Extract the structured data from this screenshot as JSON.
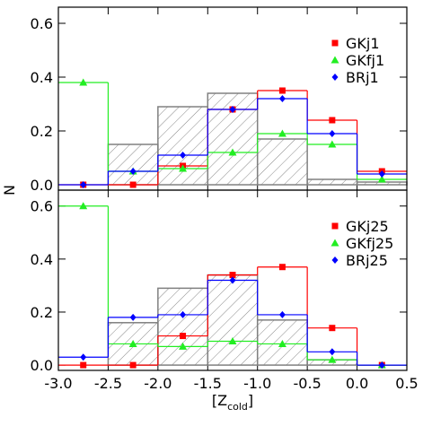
{
  "chart_data": [
    {
      "type": "histogram",
      "ylabel": "N",
      "bins": [
        -3.0,
        -2.5,
        -2.0,
        -1.5,
        -1.0,
        -0.5,
        0.0,
        0.5
      ],
      "xlim": [
        -3.0,
        0.5
      ],
      "ylim": [
        -0.02,
        0.66
      ],
      "yticks": [
        {
          "value": 0,
          "label": "0.0"
        },
        0.2,
        0.4,
        0.6
      ],
      "legend": "upper right",
      "series": [
        {
          "color": "#808080",
          "hatch": true,
          "values": [
            0,
            0.15,
            0.29,
            0.34,
            0.17,
            0.02,
            0.01
          ]
        },
        {
          "name": "GKj1",
          "color": "#ff0000",
          "marker": "square",
          "values": [
            0,
            0,
            0.07,
            0.28,
            0.35,
            0.24,
            0.05
          ]
        },
        {
          "name": "GKfj1",
          "color": "#22ee22",
          "marker": "triangle",
          "values": [
            0.38,
            0.05,
            0.06,
            0.12,
            0.19,
            0.15,
            0.02
          ]
        },
        {
          "name": "BRj1",
          "color": "#0000ff",
          "marker": "diamond",
          "values": [
            0,
            0.05,
            0.11,
            0.28,
            0.32,
            0.19,
            0.04
          ]
        }
      ]
    },
    {
      "type": "histogram",
      "xlabel": "[Z",
      "xlabel_sub": "cold",
      "xlabel_end": "]",
      "bins": [
        -3.0,
        -2.5,
        -2.0,
        -1.5,
        -1.0,
        -0.5,
        0.0,
        0.5
      ],
      "xlim": [
        -3.0,
        0.5
      ],
      "ylim": [
        -0.02,
        0.66
      ],
      "xticks": [
        {
          "value": -3,
          "label": "-3.0"
        },
        {
          "value": -2.5,
          "label": "-2.5"
        },
        {
          "value": -2,
          "label": "-2.0"
        },
        {
          "value": -1.5,
          "label": "-1.5"
        },
        {
          "value": -1,
          "label": "-1.0"
        },
        {
          "value": -0.5,
          "label": "-0.5"
        },
        {
          "value": 0,
          "label": "0.0"
        },
        0.5
      ],
      "yticks": [
        {
          "value": 0,
          "label": "0.0"
        },
        0.2,
        0.4,
        0.6
      ],
      "legend": "upper right",
      "series": [
        {
          "color": "#808080",
          "hatch": true,
          "values": [
            0,
            0.16,
            0.29,
            0.34,
            0.17,
            0.02,
            0
          ]
        },
        {
          "name": "GKj25",
          "color": "#ff0000",
          "marker": "square",
          "values": [
            0,
            0,
            0.11,
            0.34,
            0.37,
            0.14,
            0
          ]
        },
        {
          "name": "GKfj25",
          "color": "#22ee22",
          "marker": "triangle",
          "values": [
            0.6,
            0.08,
            0.07,
            0.09,
            0.08,
            0.02,
            0
          ]
        },
        {
          "name": "BRj25",
          "color": "#0000ff",
          "marker": "diamond",
          "values": [
            0.03,
            0.18,
            0.19,
            0.32,
            0.19,
            0.05,
            0
          ]
        }
      ]
    }
  ]
}
